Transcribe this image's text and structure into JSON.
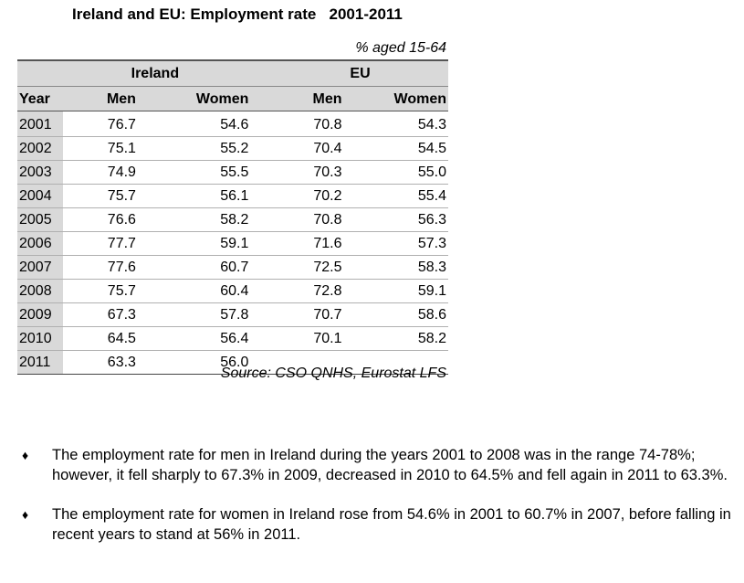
{
  "title": "Ireland and EU: Employment rate   2001-2011",
  "unit_note": "% aged 15-64",
  "table": {
    "group_headers": [
      "Ireland",
      "EU"
    ],
    "column_headers": [
      "Year",
      "Men",
      "Women",
      "Men",
      "Women"
    ],
    "rows": [
      [
        "2001",
        "76.7",
        "54.6",
        "70.8",
        "54.3"
      ],
      [
        "2002",
        "75.1",
        "55.2",
        "70.4",
        "54.5"
      ],
      [
        "2003",
        "74.9",
        "55.5",
        "70.3",
        "55.0"
      ],
      [
        "2004",
        "75.7",
        "56.1",
        "70.2",
        "55.4"
      ],
      [
        "2005",
        "76.6",
        "58.2",
        "70.8",
        "56.3"
      ],
      [
        "2006",
        "77.7",
        "59.1",
        "71.6",
        "57.3"
      ],
      [
        "2007",
        "77.6",
        "60.7",
        "72.5",
        "58.3"
      ],
      [
        "2008",
        "75.7",
        "60.4",
        "72.8",
        "59.1"
      ],
      [
        "2009",
        "67.3",
        "57.8",
        "70.7",
        "58.6"
      ],
      [
        "2010",
        "64.5",
        "56.4",
        "70.1",
        "58.2"
      ],
      [
        "2011",
        "63.3",
        "56.0",
        "",
        ""
      ]
    ]
  },
  "source": "Source: CSO QNHS, Eurostat LFS",
  "bullet_symbol": "♦",
  "bullets": [
    "The employment rate for men in Ireland during the years 2001 to 2008 was in the range 74-78%; however, it fell sharply to 67.3% in 2009, decreased in 2010 to 64.5% and fell again in 2011 to 63.3%.",
    "The employment rate for women in Ireland rose from 54.6% in 2001 to 60.7% in 2007, before falling in recent years to stand at 56% in 2011."
  ]
}
